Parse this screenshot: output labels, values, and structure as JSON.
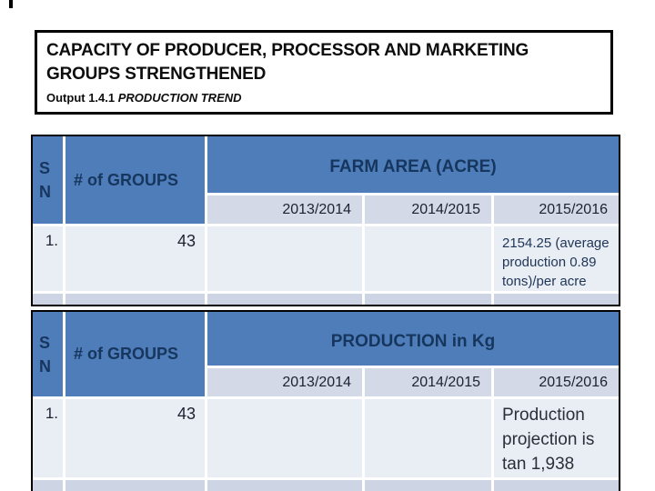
{
  "title": {
    "line1": "CAPACITY OF PRODUCER, PROCESSOR AND MARKETING",
    "line2": "GROUPS STRENGTHENED",
    "subtitle_prefix": "Output 1.4.1 ",
    "subtitle_emphasis": "PRODUCTION TREND"
  },
  "colors": {
    "header_blue": "#4e7dba",
    "header_text_navy": "#17365d",
    "subheader_bg": "#d3d9e7",
    "data_row_bg": "#e9edf4",
    "band_bg": "#cdd4e3",
    "border": "#000000"
  },
  "tables": [
    {
      "sn_header": [
        "S",
        "N"
      ],
      "groups_header": "# of GROUPS",
      "span_header": "FARM AREA (ACRE)",
      "years": [
        "2013/2014",
        "2014/2015",
        "2015/2016"
      ],
      "rows": [
        {
          "sn": "1.",
          "groups": "43",
          "y1": "",
          "y2": "",
          "y3": "2154.25 (average production 0.89 tons)/per acre"
        }
      ]
    },
    {
      "sn_header": [
        "S",
        "N"
      ],
      "groups_header": "# of GROUPS",
      "span_header": "PRODUCTION in Kg",
      "years": [
        "2013/2014",
        "2014/2015",
        "2015/2016"
      ],
      "rows": [
        {
          "sn": "1.",
          "groups": "43",
          "y1": "",
          "y2": "",
          "y3": "Production projection is  tan 1,938"
        }
      ]
    }
  ]
}
